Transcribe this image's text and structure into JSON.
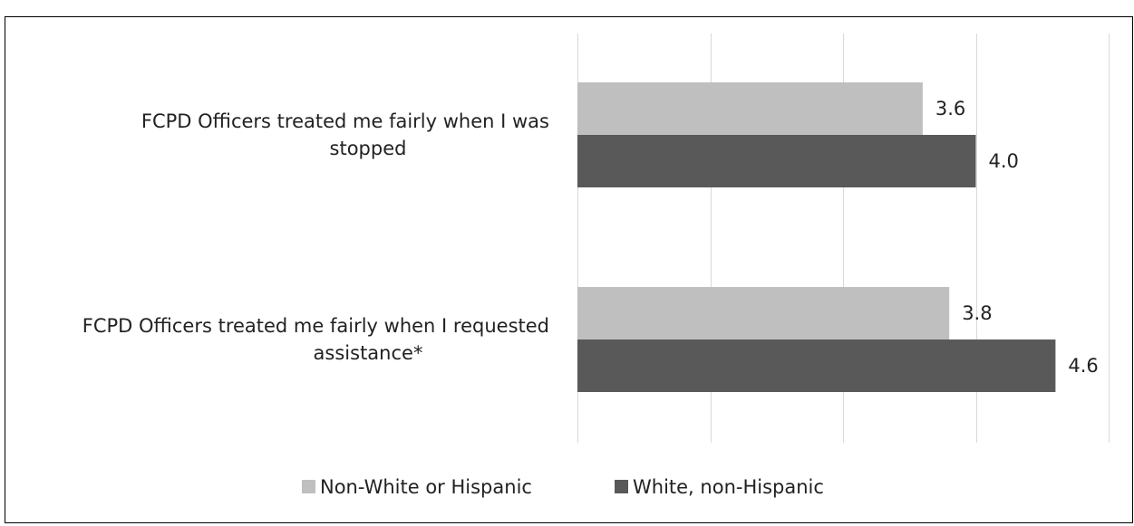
{
  "chart_data": {
    "type": "bar",
    "orientation": "horizontal",
    "categories": [
      [
        "FCPD Officers treated me fairly when I was",
        "stopped"
      ],
      [
        "FCPD Officers treated me fairly when I requested",
        "assistance*"
      ]
    ],
    "series": [
      {
        "name": "Non-White or Hispanic",
        "values": [
          3.6,
          3.8
        ],
        "labels": [
          "3.6",
          "3.8"
        ],
        "color": "#bfbfbf"
      },
      {
        "name": "White, non-Hispanic",
        "values": [
          4.0,
          4.6
        ],
        "labels": [
          "4.0",
          "4.6"
        ],
        "color": "#595959"
      }
    ],
    "xlim": [
      1,
      5
    ],
    "gridlines": true,
    "legend": "bottom",
    "title": ""
  }
}
